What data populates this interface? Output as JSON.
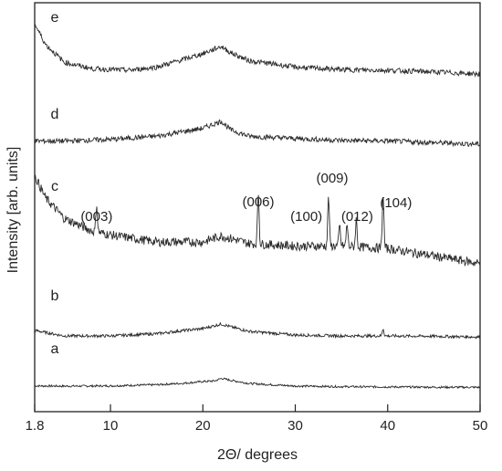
{
  "chart_data": {
    "type": "line",
    "title": "",
    "xlabel": "2Θ/ degrees",
    "ylabel": "Intensity [arb. units]",
    "xlim": [
      1.8,
      50
    ],
    "xticks": [
      {
        "value": 1.8,
        "label": "1.8"
      },
      {
        "value": 10,
        "label": "10"
      },
      {
        "value": 20,
        "label": "20"
      },
      {
        "value": 30,
        "label": "30"
      },
      {
        "value": 40,
        "label": "40"
      },
      {
        "value": 50,
        "label": "50"
      }
    ],
    "grid": false,
    "series": [
      {
        "name": "a",
        "points": [
          [
            1.8,
            0.16
          ],
          [
            5,
            0.14
          ],
          [
            10,
            0.16
          ],
          [
            15,
            0.25
          ],
          [
            18,
            0.37
          ],
          [
            20,
            0.5
          ],
          [
            21.3,
            0.55
          ],
          [
            22,
            0.75
          ],
          [
            23,
            0.6
          ],
          [
            25,
            0.35
          ],
          [
            30,
            0.15
          ],
          [
            35,
            0.1
          ],
          [
            40,
            0.08
          ],
          [
            45,
            0.06
          ],
          [
            50,
            0.05
          ]
        ],
        "peaks": []
      },
      {
        "name": "b",
        "points": [
          [
            1.8,
            0.5
          ],
          [
            5,
            0.2
          ],
          [
            10,
            0.2
          ],
          [
            15,
            0.32
          ],
          [
            18,
            0.5
          ],
          [
            20,
            0.6
          ],
          [
            22,
            0.85
          ],
          [
            23,
            0.7
          ],
          [
            25,
            0.45
          ],
          [
            30,
            0.25
          ],
          [
            35,
            0.2
          ],
          [
            40,
            0.2
          ],
          [
            45,
            0.18
          ],
          [
            50,
            0.14
          ]
        ],
        "peaks": [
          [
            39.5,
            0.4
          ]
        ]
      },
      {
        "name": "c",
        "points": [
          [
            1.8,
            1.9
          ],
          [
            3,
            1.45
          ],
          [
            5,
            1.05
          ],
          [
            8,
            0.8
          ],
          [
            10,
            0.72
          ],
          [
            15,
            0.58
          ],
          [
            20,
            0.58
          ],
          [
            22,
            0.7
          ],
          [
            25,
            0.55
          ],
          [
            30,
            0.5
          ],
          [
            35,
            0.5
          ],
          [
            40,
            0.45
          ],
          [
            45,
            0.3
          ],
          [
            50,
            0.15
          ]
        ],
        "peaks": [
          [
            8.5,
            0.55
          ],
          [
            26,
            1.05
          ],
          [
            33.6,
            1.0
          ],
          [
            34.8,
            0.4
          ],
          [
            35.6,
            0.45
          ],
          [
            36.6,
            0.55
          ],
          [
            39.5,
            1.1
          ]
        ]
      },
      {
        "name": "d",
        "points": [
          [
            1.8,
            0.3
          ],
          [
            5,
            0.3
          ],
          [
            10,
            0.35
          ],
          [
            15,
            0.45
          ],
          [
            18,
            0.6
          ],
          [
            20,
            0.7
          ],
          [
            22,
            0.92
          ],
          [
            23,
            0.65
          ],
          [
            25,
            0.45
          ],
          [
            30,
            0.38
          ],
          [
            35,
            0.32
          ],
          [
            40,
            0.3
          ],
          [
            45,
            0.25
          ],
          [
            50,
            0.2
          ]
        ],
        "peaks": []
      },
      {
        "name": "e",
        "points": [
          [
            1.8,
            1.65
          ],
          [
            3,
            1.0
          ],
          [
            5,
            0.45
          ],
          [
            8,
            0.25
          ],
          [
            12,
            0.2
          ],
          [
            15,
            0.3
          ],
          [
            18,
            0.55
          ],
          [
            20,
            0.72
          ],
          [
            22,
            0.95
          ],
          [
            23,
            0.75
          ],
          [
            25,
            0.5
          ],
          [
            30,
            0.3
          ],
          [
            35,
            0.22
          ],
          [
            40,
            0.2
          ],
          [
            45,
            0.15
          ],
          [
            50,
            0.08
          ]
        ],
        "peaks": []
      }
    ],
    "annotations": [
      {
        "text": "(003)",
        "x": 8.5
      },
      {
        "text": "(006)",
        "x": 26
      },
      {
        "text": "(100)",
        "x": 31.2
      },
      {
        "text": "(009)",
        "x": 34
      },
      {
        "text": "(012)",
        "x": 36.7
      },
      {
        "text": "(104)",
        "x": 40.9
      }
    ]
  }
}
